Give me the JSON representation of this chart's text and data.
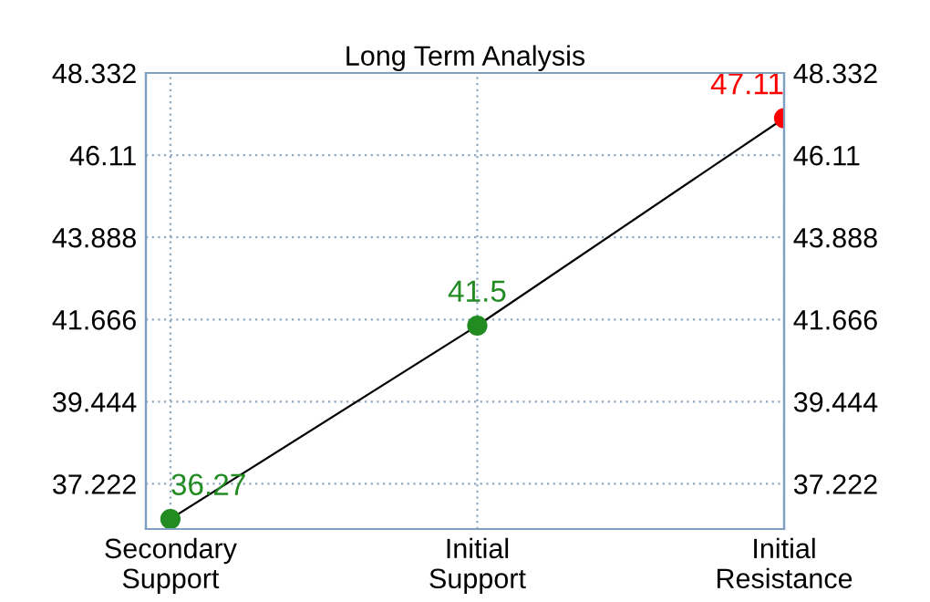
{
  "chart_data": {
    "type": "line",
    "title": "Long Term Analysis",
    "categories": [
      "Secondary\nSupport",
      "Initial\nSupport",
      "Initial\nResistance"
    ],
    "series": [
      {
        "color": "#000000",
        "colors": [
          "#228b22",
          "#228b22",
          "#ff0000"
        ],
        "values": [
          36.27,
          41.5,
          47.11
        ]
      }
    ],
    "ylim": [
      36.0,
      48.332
    ],
    "yticks": [
      37.222,
      39.444,
      41.666,
      43.888,
      46.11,
      48.332
    ],
    "y2lim": [
      36.0,
      48.332
    ],
    "y2ticks": [
      37.222,
      39.444,
      41.666,
      43.888,
      46.11,
      48.332
    ],
    "grid": true,
    "marker": "circle",
    "line_style": "solid",
    "data_labels": true
  }
}
